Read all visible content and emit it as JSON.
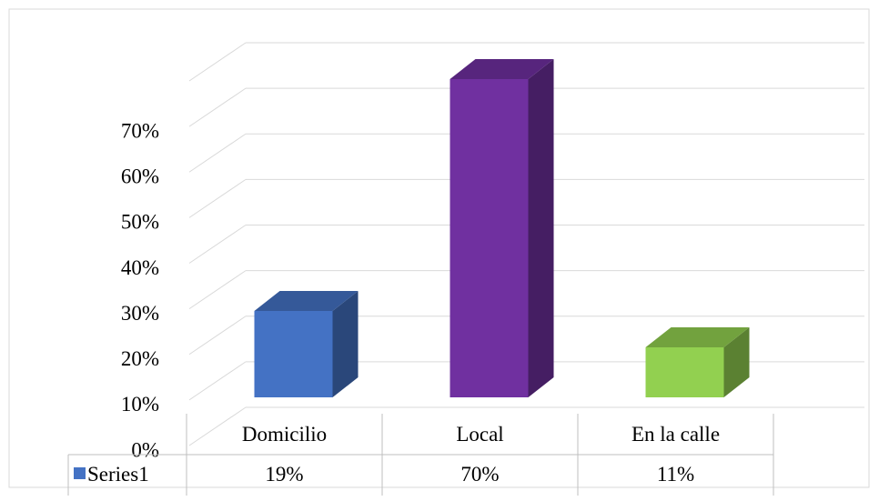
{
  "chart_data": {
    "type": "bar3d",
    "categories": [
      "Domicilio",
      "Local",
      "En la calle"
    ],
    "series": [
      {
        "name": "Series1",
        "color": "#4472c4",
        "values": [
          19,
          70,
          11
        ],
        "value_labels": [
          "19%",
          "70%",
          "11%"
        ]
      }
    ],
    "colors": [
      "#4472c4",
      "#7030a0",
      "#92d050"
    ],
    "ylim": [
      0,
      80
    ],
    "yticks": [
      {
        "value": 0,
        "label": "0%"
      },
      {
        "value": 10,
        "label": "10%"
      },
      {
        "value": 20,
        "label": "20%"
      },
      {
        "value": 30,
        "label": "30%"
      },
      {
        "value": 40,
        "label": "40%"
      },
      {
        "value": 50,
        "label": "50%"
      },
      {
        "value": 60,
        "label": "60%"
      },
      {
        "value": 70,
        "label": "70%"
      }
    ],
    "grid": true
  }
}
